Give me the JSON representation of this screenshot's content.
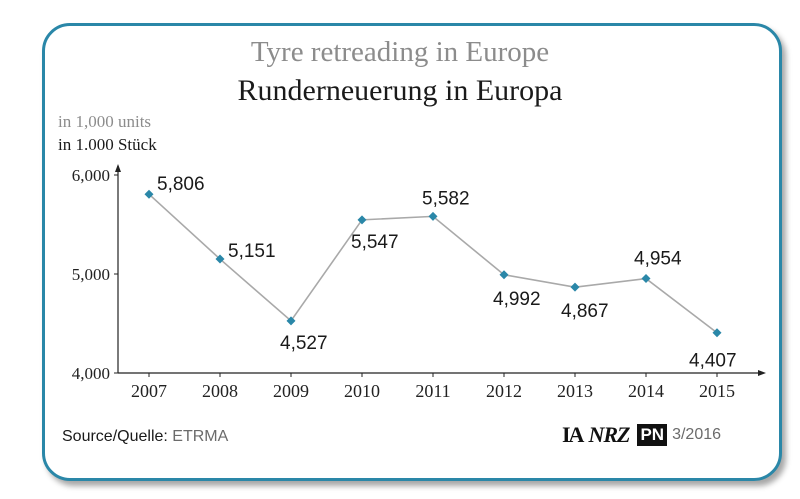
{
  "titles": {
    "title_en": "Tyre retreading in Europe",
    "title_de": "Runderneuerung in Europa",
    "unit_en": "in 1,000 units",
    "unit_de": "in 1.000 Stück"
  },
  "chart_data": {
    "type": "line",
    "categories": [
      "2007",
      "2008",
      "2009",
      "2010",
      "2011",
      "2012",
      "2013",
      "2014",
      "2015"
    ],
    "values": [
      5806,
      5151,
      4527,
      5547,
      5582,
      4992,
      4867,
      4954,
      4407
    ],
    "value_labels": [
      "5,806",
      "5,151",
      "4,527",
      "5,547",
      "5,582",
      "4,992",
      "4,867",
      "4,954",
      "4,407"
    ],
    "yticks": [
      4000,
      5000,
      6000
    ],
    "ytick_labels": [
      "4,000",
      "5,000",
      "6,000"
    ],
    "ylim": [
      4000,
      6000
    ],
    "grid": false,
    "colors": {
      "line": "#a9a9a9",
      "marker": "#2a87a8",
      "border": "#2a87a8"
    }
  },
  "footer": {
    "source_label": "Source/Quelle:",
    "source_value": "ETRMA",
    "logo_ia": "IA",
    "logo_nrz": "NRZ",
    "logo_pn": "PN",
    "issue": "3/2016"
  }
}
